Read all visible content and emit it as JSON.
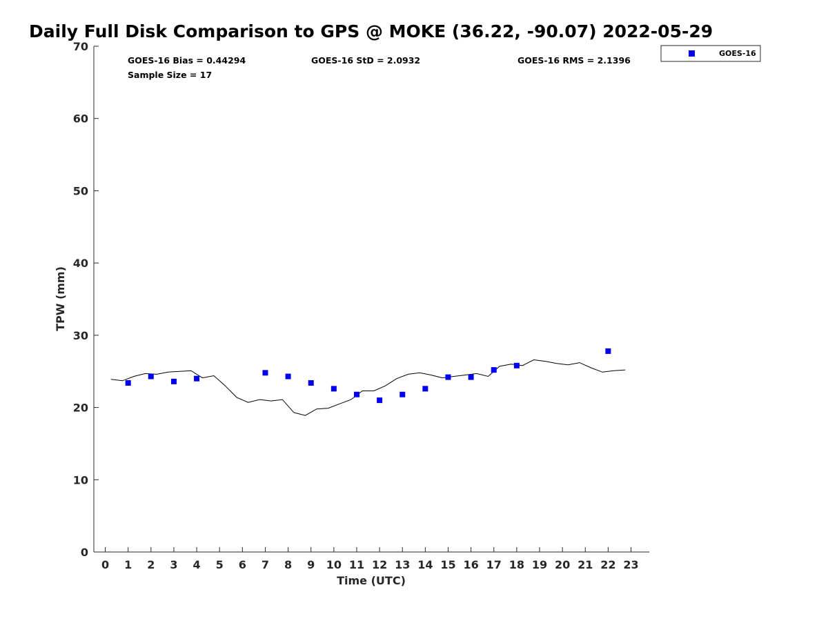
{
  "chart_data": {
    "type": "scatter",
    "title": "Daily Full Disk Comparison to GPS @ MOKE (36.22, -90.07) 2022-05-29",
    "xlabel": "Time (UTC)",
    "ylabel": "TPW (mm)",
    "xlim": [
      -0.5,
      23.8
    ],
    "ylim": [
      0,
      70
    ],
    "xticks": [
      0,
      1,
      2,
      3,
      4,
      5,
      6,
      7,
      8,
      9,
      10,
      11,
      12,
      13,
      14,
      15,
      16,
      17,
      18,
      19,
      20,
      21,
      22,
      23
    ],
    "yticks": [
      0,
      10,
      20,
      30,
      40,
      50,
      60,
      70
    ],
    "grid": false,
    "legend_position": "outside-top-right",
    "stats": {
      "bias": "GOES-16 Bias = 0.44294",
      "std": "GOES-16 StD = 2.0932",
      "rms": "GOES-16 RMS = 2.1396",
      "sample": "Sample Size = 17"
    },
    "series": [
      {
        "name": "GOES-16",
        "kind": "scatter",
        "color": "#0000ee",
        "marker": "square",
        "x": [
          1,
          2,
          3,
          4,
          7,
          8,
          9,
          10,
          11,
          12,
          13,
          14,
          15,
          16,
          17,
          18,
          22
        ],
        "y": [
          23.4,
          24.3,
          23.6,
          24.0,
          24.8,
          24.3,
          23.4,
          22.6,
          21.8,
          21.0,
          21.8,
          22.6,
          24.2,
          24.2,
          25.2,
          25.8,
          27.8
        ]
      },
      {
        "kind": "line",
        "color": "#000000",
        "x": [
          0.25,
          0.75,
          1.25,
          1.75,
          2.25,
          2.75,
          3.25,
          3.75,
          4.25,
          4.75,
          5.25,
          5.75,
          6.25,
          6.75,
          7.25,
          7.75,
          8.25,
          8.75,
          9.25,
          9.75,
          10.25,
          10.75,
          11.25,
          11.75,
          12.25,
          12.75,
          13.25,
          13.75,
          14.25,
          14.75,
          15.25,
          15.75,
          16.25,
          16.75,
          17.25,
          17.75,
          18.25,
          18.75,
          19.25,
          19.75,
          20.25,
          20.75,
          21.25,
          21.75,
          22.25,
          22.75
        ],
        "y": [
          23.9,
          23.7,
          24.3,
          24.7,
          24.6,
          24.9,
          25.0,
          25.1,
          24.1,
          24.4,
          23.0,
          21.4,
          20.7,
          21.1,
          20.9,
          21.1,
          19.3,
          18.9,
          19.8,
          19.9,
          20.5,
          21.1,
          22.3,
          22.3,
          23.0,
          24.0,
          24.6,
          24.8,
          24.5,
          24.1,
          24.3,
          24.5,
          24.7,
          24.3,
          25.7,
          26.0,
          25.8,
          26.6,
          26.4,
          26.1,
          25.9,
          26.2,
          25.5,
          24.9,
          25.1,
          25.2
        ]
      }
    ]
  }
}
